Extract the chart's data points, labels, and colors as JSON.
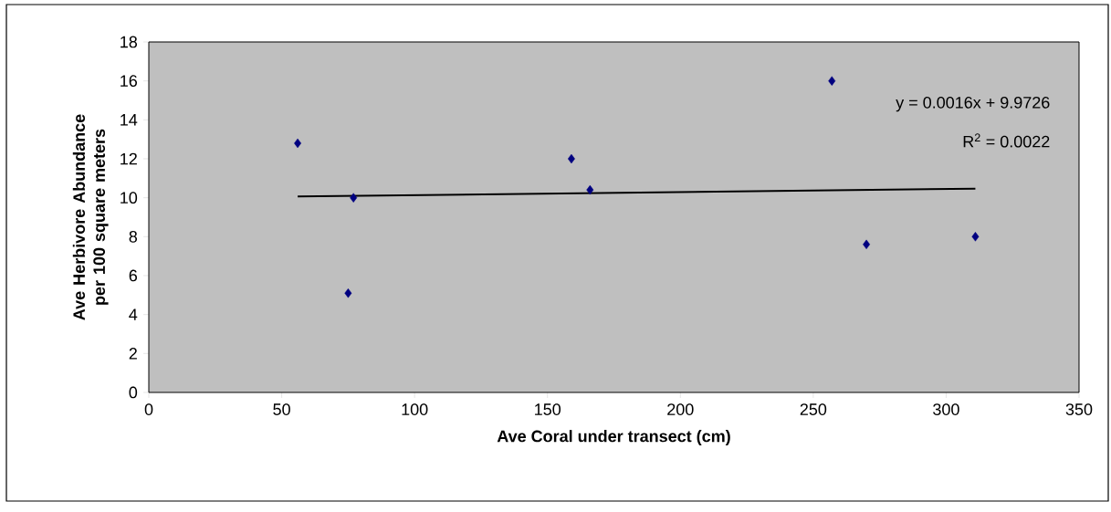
{
  "chart_data": {
    "type": "scatter",
    "xlabel": "Ave Coral under transect (cm)",
    "ylabel": "Ave Herbivore Abundance per 100 square meters",
    "series": [
      {
        "color": "#000080",
        "marker": "diamond",
        "x": [
          56,
          75,
          77,
          159,
          166,
          257,
          270,
          311
        ],
        "values": [
          12.8,
          5.1,
          10.0,
          12.0,
          10.4,
          16.0,
          7.6,
          8.0
        ]
      },
      {
        "type": "line",
        "color": "#000000",
        "marker": "none",
        "x": [
          56,
          311
        ],
        "values": [
          10.06,
          10.47
        ]
      }
    ],
    "annotations": [
      "y = 0.0016x + 9.9726",
      "R$^{2}$ = 0.0022"
    ],
    "xlim": [
      0,
      350
    ],
    "xticks": [
      0,
      50,
      100,
      150,
      200,
      250,
      300,
      350
    ],
    "ylim": [
      0,
      18
    ],
    "yticks": [
      0,
      2,
      4,
      6,
      8,
      10,
      12,
      14,
      16,
      18
    ],
    "grid": false
  }
}
